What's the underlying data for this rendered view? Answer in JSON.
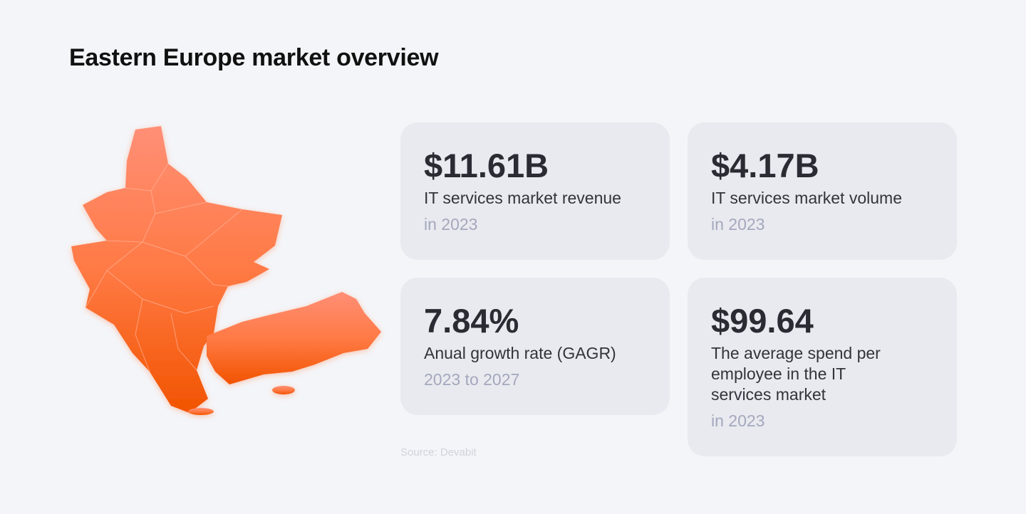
{
  "header": {
    "title": "Eastern Europe market overview"
  },
  "cards": [
    {
      "value": "$11.61B",
      "label": "IT services market revenue",
      "period": "in 2023"
    },
    {
      "value": "$4.17B",
      "label": "IT services market volume",
      "period": "in 2023"
    },
    {
      "value": "7.84%",
      "label": "Anual growth rate (GAGR)",
      "period": "2023 to 2027"
    },
    {
      "value": "$99.64",
      "label": "The average spend per employee in the IT services market",
      "period": "in 2023"
    }
  ],
  "source": "Source: Devabit"
}
